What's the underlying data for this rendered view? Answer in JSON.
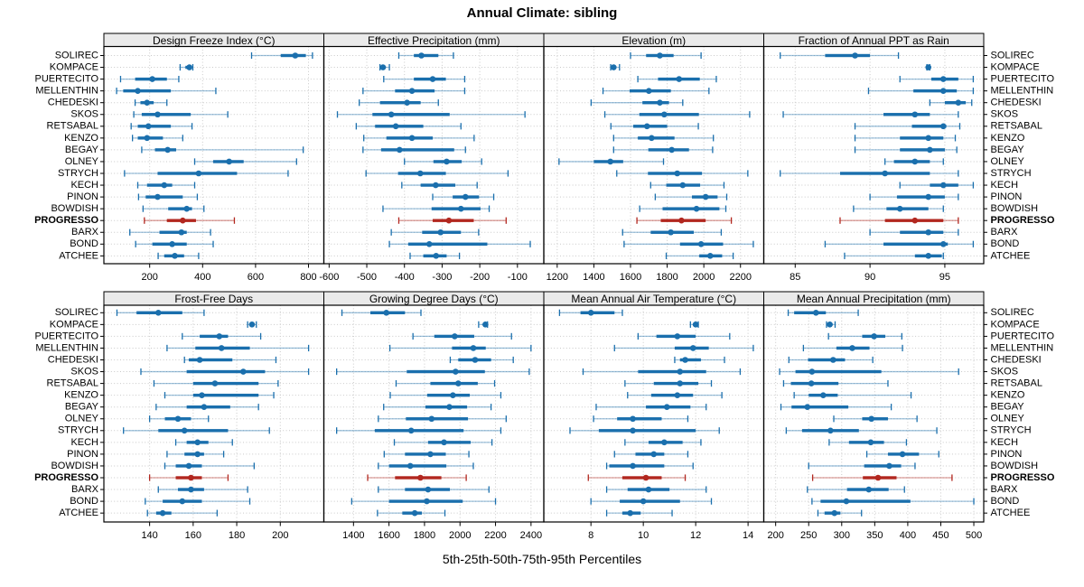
{
  "chart_data": {
    "type": "dot-whisker-percentiles-trellis",
    "title": "Annual Climate: sibling",
    "caption": "5th-25th-50th-75th-95th Percentiles",
    "percentile_labels": [
      "5th",
      "25th",
      "50th",
      "75th",
      "95th"
    ],
    "stations": [
      "SOLIREC",
      "KOMPACE",
      "PUERTECITO",
      "MELLENTHIN",
      "CHEDESKI",
      "SKOS",
      "RETSABAL",
      "KENZO",
      "BEGAY",
      "OLNEY",
      "STRYCH",
      "KECH",
      "PINON",
      "BOWDISH",
      "PROGRESSO",
      "BARX",
      "BOND",
      "ATCHEE"
    ],
    "highlight_station": "PROGRESSO",
    "colors": {
      "normal": "#1A6FAD",
      "normal_light": "rgba(26,111,173,0.42)",
      "highlight": "#B2271F",
      "highlight_light": "rgba(178,39,31,0.45)",
      "grid": "#c9c9c9",
      "strip_bg": "#EAEAEA",
      "panel_border": "#000000"
    },
    "layout": {
      "rows": 2,
      "cols": 4,
      "grid": "dotted",
      "labels_both_sides": true
    },
    "panels": [
      {
        "title": "Design Freeze Index (°C)",
        "ticks": [
          200,
          400,
          600,
          800
        ],
        "xlim": [
          27,
          858
        ],
        "values": [
          [
            585,
            695,
            750,
            790,
            815
          ],
          [
            315,
            335,
            350,
            356,
            363
          ],
          [
            90,
            145,
            210,
            265,
            310
          ],
          [
            75,
            100,
            155,
            280,
            450
          ],
          [
            145,
            165,
            190,
            215,
            265
          ],
          [
            140,
            170,
            230,
            355,
            495
          ],
          [
            130,
            155,
            195,
            280,
            360
          ],
          [
            135,
            155,
            190,
            250,
            325
          ],
          [
            170,
            220,
            268,
            300,
            780
          ],
          [
            370,
            440,
            500,
            555,
            755
          ],
          [
            105,
            230,
            385,
            530,
            723
          ],
          [
            155,
            190,
            255,
            285,
            370
          ],
          [
            158,
            185,
            230,
            325,
            380
          ],
          [
            175,
            270,
            340,
            360,
            405
          ],
          [
            180,
            265,
            325,
            375,
            520
          ],
          [
            125,
            237,
            320,
            340,
            430
          ],
          [
            147,
            210,
            285,
            340,
            440
          ],
          [
            232,
            255,
            295,
            330,
            385
          ]
        ]
      },
      {
        "title": "Effective Precipitation (mm)",
        "ticks": [
          -600,
          -500,
          -400,
          -300,
          -200,
          -100
        ],
        "xlim": [
          -614,
          -30
        ],
        "values": [
          [
            -415,
            -375,
            -355,
            -310,
            -270
          ],
          [
            -465,
            -461,
            -457,
            -451,
            -440
          ],
          [
            -455,
            -375,
            -325,
            -290,
            -240
          ],
          [
            -510,
            -425,
            -380,
            -320,
            -240
          ],
          [
            -520,
            -465,
            -393,
            -357,
            -310
          ],
          [
            -578,
            -485,
            -435,
            -280,
            -80
          ],
          [
            -528,
            -478,
            -423,
            -350,
            -250
          ],
          [
            -508,
            -448,
            -380,
            -325,
            -215
          ],
          [
            -510,
            -462,
            -413,
            -268,
            -238
          ],
          [
            -400,
            -323,
            -288,
            -248,
            -195
          ],
          [
            -502,
            -417,
            -358,
            -290,
            -125
          ],
          [
            -407,
            -357,
            -317,
            -265,
            -207
          ],
          [
            -325,
            -272,
            -238,
            -202,
            -163
          ],
          [
            -457,
            -328,
            -250,
            -198,
            -175
          ],
          [
            -415,
            -325,
            -282,
            -216,
            -130
          ],
          [
            -435,
            -353,
            -304,
            -250,
            -203
          ],
          [
            -440,
            -390,
            -334,
            -180,
            -66
          ],
          [
            -385,
            -350,
            -316,
            -288,
            -254
          ]
        ]
      },
      {
        "title": "Elevation (m)",
        "ticks": [
          1200,
          1400,
          1600,
          1800,
          2000,
          2200
        ],
        "xlim": [
          1127,
          2327
        ],
        "values": [
          [
            1600,
            1685,
            1760,
            1835,
            1985
          ],
          [
            1492,
            1500,
            1508,
            1520,
            1540
          ],
          [
            1640,
            1750,
            1865,
            1978,
            2068
          ],
          [
            1450,
            1595,
            1700,
            1820,
            2028
          ],
          [
            1385,
            1665,
            1760,
            1810,
            1885
          ],
          [
            1460,
            1648,
            1784,
            1973,
            2250
          ],
          [
            1493,
            1615,
            1690,
            1800,
            1970
          ],
          [
            1508,
            1640,
            1715,
            1840,
            2052
          ],
          [
            1508,
            1697,
            1825,
            1919,
            2048
          ],
          [
            1210,
            1400,
            1490,
            1560,
            1780
          ],
          [
            1525,
            1695,
            1855,
            1990,
            2240
          ],
          [
            1710,
            1795,
            1885,
            1980,
            2110
          ],
          [
            1735,
            1935,
            2010,
            2075,
            2125
          ],
          [
            1650,
            1775,
            1960,
            2085,
            2120
          ],
          [
            1635,
            1765,
            1878,
            2010,
            2150
          ],
          [
            1557,
            1710,
            1820,
            1945,
            2095
          ],
          [
            1565,
            1870,
            1985,
            2105,
            2270
          ],
          [
            1795,
            1975,
            2035,
            2100,
            2160
          ]
        ]
      },
      {
        "title": "Fraction of Annual PPT as Rain",
        "ticks": [
          85,
          90,
          95
        ],
        "xlim": [
          82.9,
          97.6
        ],
        "values": [
          [
            84.0,
            87.0,
            89.0,
            90.0,
            91.9
          ],
          [
            93.8,
            93.9,
            93.9,
            94.0,
            94.0
          ],
          [
            92.0,
            94.1,
            94.9,
            95.9,
            96.9
          ],
          [
            89.9,
            92.9,
            94.9,
            95.8,
            96.9
          ],
          [
            94.0,
            95.0,
            95.9,
            96.4,
            96.8
          ],
          [
            84.2,
            90.9,
            93.0,
            94.0,
            95.9
          ],
          [
            89.0,
            92.8,
            94.9,
            95.1,
            96.0
          ],
          [
            89.0,
            92.0,
            93.9,
            94.9,
            95.7
          ],
          [
            89.0,
            92.0,
            94.0,
            95.0,
            95.8
          ],
          [
            91.0,
            91.6,
            93.0,
            94.0,
            94.9
          ],
          [
            84.0,
            88.0,
            91.0,
            94.0,
            95.9
          ],
          [
            92.0,
            94.0,
            94.9,
            95.9,
            96.9
          ],
          [
            90.0,
            91.8,
            93.9,
            95.0,
            95.9
          ],
          [
            88.9,
            91.1,
            92.0,
            93.9,
            94.9
          ],
          [
            88.0,
            91.0,
            93.0,
            94.9,
            95.9
          ],
          [
            90.0,
            92.0,
            93.9,
            94.9,
            95.9
          ],
          [
            87.0,
            90.9,
            94.9,
            95.2,
            96.9
          ],
          [
            88.3,
            93.0,
            93.9,
            94.8,
            94.9
          ]
        ]
      },
      {
        "title": "Frost-Free Days",
        "ticks": [
          140,
          160,
          180,
          200
        ],
        "xlim": [
          119,
          220
        ],
        "values": [
          [
            125,
            134,
            144,
            155,
            165
          ],
          [
            185,
            186,
            187,
            188,
            189
          ],
          [
            155,
            163,
            172,
            176,
            191
          ],
          [
            148,
            161,
            173,
            186,
            213
          ],
          [
            156,
            158,
            163,
            178,
            198
          ],
          [
            136,
            157,
            183,
            193,
            213
          ],
          [
            142,
            160,
            170,
            190,
            199
          ],
          [
            147,
            160,
            164,
            190,
            197
          ],
          [
            143,
            157,
            165,
            177,
            190
          ],
          [
            140,
            147,
            153,
            159,
            167
          ],
          [
            128,
            144,
            156,
            176,
            195
          ],
          [
            152,
            157,
            162,
            167,
            178
          ],
          [
            148,
            156,
            162,
            165,
            174
          ],
          [
            147,
            152,
            158,
            164,
            188
          ],
          [
            140,
            152,
            159,
            164,
            176
          ],
          [
            144,
            153,
            159,
            165,
            185
          ],
          [
            138,
            146,
            155,
            164,
            186
          ],
          [
            139,
            143,
            146,
            150,
            171
          ]
        ]
      },
      {
        "title": "Growing Degree Days (°C)",
        "ticks": [
          1400,
          1600,
          1800,
          2000,
          2200,
          2400
        ],
        "xlim": [
          1233,
          2472
        ],
        "values": [
          [
            1335,
            1495,
            1585,
            1690,
            1780
          ],
          [
            2105,
            2130,
            2143,
            2150,
            2155
          ],
          [
            1735,
            1855,
            1970,
            2080,
            2290
          ],
          [
            1605,
            1955,
            2075,
            2145,
            2400
          ],
          [
            1945,
            1990,
            2085,
            2175,
            2300
          ],
          [
            1305,
            1700,
            1975,
            2140,
            2390
          ],
          [
            1640,
            1833,
            1990,
            2100,
            2195
          ],
          [
            1607,
            1815,
            1960,
            2055,
            2230
          ],
          [
            1570,
            1805,
            1940,
            2040,
            2175
          ],
          [
            1540,
            1695,
            1840,
            2045,
            2260
          ],
          [
            1305,
            1520,
            1725,
            2020,
            2230
          ],
          [
            1630,
            1820,
            1910,
            2060,
            2180
          ],
          [
            1573,
            1690,
            1833,
            1920,
            2050
          ],
          [
            1540,
            1600,
            1720,
            1923,
            2075
          ],
          [
            1480,
            1634,
            1777,
            1895,
            2035
          ],
          [
            1540,
            1690,
            1820,
            1943,
            2163
          ],
          [
            1390,
            1600,
            1813,
            2015,
            2200
          ],
          [
            1535,
            1675,
            1745,
            1785,
            1915
          ]
        ]
      },
      {
        "title": "Mean Annual Air Temperature (°C)",
        "ticks": [
          8,
          10,
          12,
          14
        ],
        "xlim": [
          6.2,
          14.6
        ],
        "values": [
          [
            6.8,
            7.6,
            8.0,
            8.9,
            9.2
          ],
          [
            11.8,
            11.9,
            12.0,
            12.05,
            12.1
          ],
          [
            9.8,
            10.5,
            11.3,
            12.0,
            13.3
          ],
          [
            8.9,
            11.2,
            11.9,
            12.5,
            14.2
          ],
          [
            11.2,
            11.4,
            11.6,
            12.2,
            13.1
          ],
          [
            7.7,
            9.8,
            11.4,
            12.4,
            13.7
          ],
          [
            9.3,
            10.4,
            11.4,
            12.1,
            12.6
          ],
          [
            9.4,
            10.3,
            11.3,
            11.9,
            13.0
          ],
          [
            8.2,
            10.1,
            10.9,
            11.8,
            12.4
          ],
          [
            8.1,
            9.0,
            9.6,
            10.7,
            11.7
          ],
          [
            7.2,
            8.3,
            9.6,
            12.0,
            12.9
          ],
          [
            9.3,
            10.2,
            10.8,
            11.5,
            12.2
          ],
          [
            8.9,
            9.7,
            10.4,
            10.8,
            11.7
          ],
          [
            8.6,
            8.7,
            9.6,
            10.8,
            11.9
          ],
          [
            7.9,
            9.2,
            10.1,
            10.7,
            11.6
          ],
          [
            8.6,
            9.4,
            10.2,
            11.0,
            12.4
          ],
          [
            8.0,
            9.1,
            10.0,
            11.4,
            12.6
          ],
          [
            8.6,
            9.2,
            9.5,
            9.9,
            11.1
          ]
        ]
      },
      {
        "title": "Mean Annual Precipitation (mm)",
        "ticks": [
          200,
          250,
          300,
          350,
          400,
          450,
          500
        ],
        "xlim": [
          182,
          515
        ],
        "values": [
          [
            219,
            228,
            261,
            276,
            325
          ],
          [
            277,
            280,
            282,
            286,
            290
          ],
          [
            280,
            331,
            349,
            366,
            391
          ],
          [
            242,
            292,
            316,
            342,
            392
          ],
          [
            220,
            249,
            287,
            305,
            347
          ],
          [
            206,
            230,
            255,
            360,
            477
          ],
          [
            212,
            223,
            254,
            295,
            370
          ],
          [
            228,
            250,
            272,
            294,
            405
          ],
          [
            208,
            224,
            248,
            310,
            375
          ],
          [
            288,
            331,
            345,
            370,
            414
          ],
          [
            216,
            240,
            283,
            326,
            444
          ],
          [
            281,
            311,
            344,
            364,
            398
          ],
          [
            338,
            370,
            392,
            417,
            447
          ],
          [
            250,
            334,
            372,
            390,
            411
          ],
          [
            256,
            332,
            355,
            383,
            467
          ],
          [
            248,
            308,
            341,
            371,
            395
          ],
          [
            255,
            268,
            307,
            404,
            500
          ],
          [
            264,
            274,
            289,
            298,
            330
          ]
        ]
      }
    ]
  }
}
